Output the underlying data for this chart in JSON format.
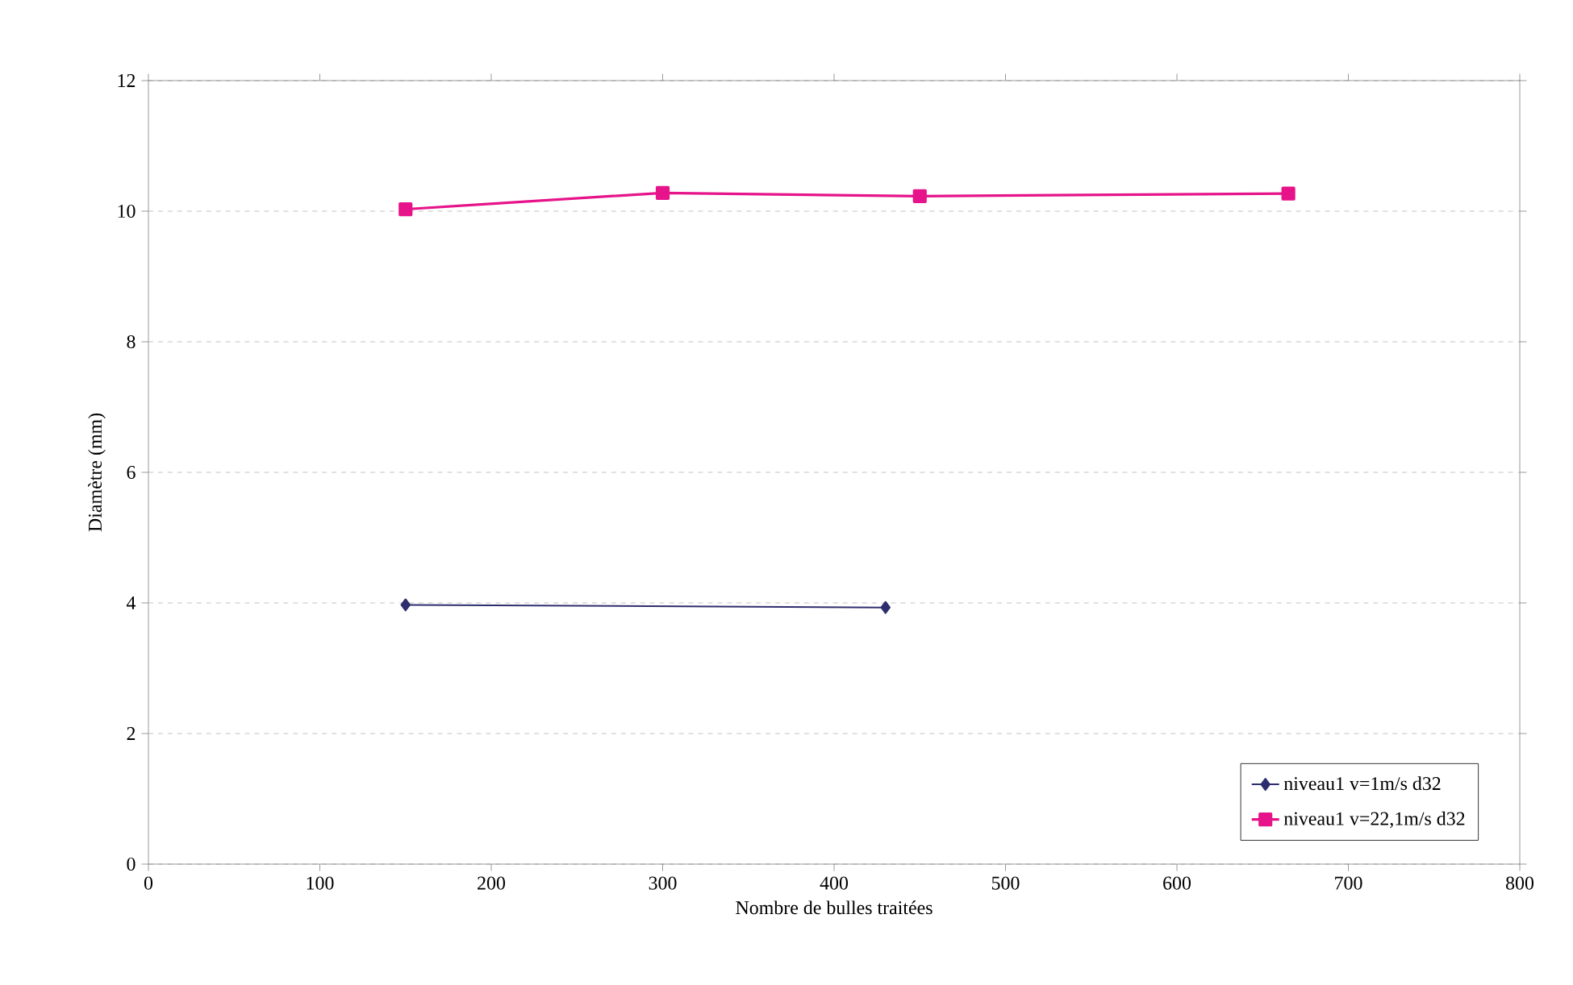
{
  "chart_data": {
    "type": "line",
    "xlabel": "Nombre de bulles traitées",
    "ylabel": "Diamètre (mm)",
    "series": [
      {
        "name": "niveau1 v=1m/s d32",
        "color": "#2e2e6e",
        "marker": "diamond",
        "x": [
          150,
          430
        ],
        "values": [
          3.97,
          3.93
        ]
      },
      {
        "name": "niveau1 v=22,1m/s d32",
        "color": "#e6138a",
        "marker": "square",
        "x": [
          150,
          300,
          450,
          665
        ],
        "values": [
          10.03,
          10.28,
          10.23,
          10.27
        ]
      }
    ],
    "xlim": [
      0,
      800
    ],
    "xticks": [
      0,
      100,
      200,
      300,
      400,
      500,
      600,
      700,
      800
    ],
    "ylim": [
      0,
      12
    ],
    "yticks": [
      0,
      2,
      4,
      6,
      8,
      10,
      12
    ],
    "grid": "y",
    "legend": "bottom right"
  }
}
